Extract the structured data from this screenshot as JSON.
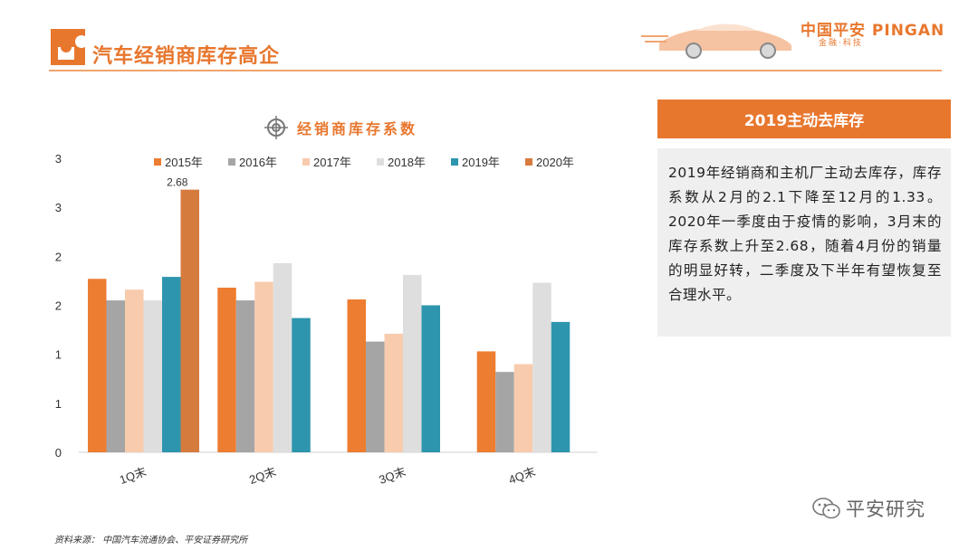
{
  "header": {
    "title": "汽车经销商库存高企",
    "brand_name": "中国平安 PINGAN",
    "brand_sub": "金融·科技"
  },
  "chart_title": "经销商库存系数",
  "chart_data": {
    "type": "bar",
    "categories": [
      "1Q末",
      "2Q末",
      "3Q末",
      "4Q末"
    ],
    "series": [
      {
        "name": "2015年",
        "color": "#ED7D31",
        "values": [
          1.77,
          1.68,
          1.56,
          1.03
        ]
      },
      {
        "name": "2016年",
        "color": "#A5A5A5",
        "values": [
          1.55,
          1.55,
          1.13,
          0.82
        ]
      },
      {
        "name": "2017年",
        "color": "#F8CBAD",
        "values": [
          1.66,
          1.74,
          1.21,
          0.9
        ]
      },
      {
        "name": "2018年",
        "color": "#DEDEDE",
        "values": [
          1.55,
          1.93,
          1.81,
          1.73
        ]
      },
      {
        "name": "2019年",
        "color": "#2E95AE",
        "values": [
          1.79,
          1.37,
          1.5,
          1.33
        ]
      },
      {
        "name": "2020年",
        "color": "#D67B3E",
        "values": [
          2.68,
          null,
          null,
          null
        ]
      }
    ],
    "yticks": [
      "0",
      "1",
      "1",
      "2",
      "2",
      "3",
      "3"
    ],
    "ylim": [
      0,
      3
    ],
    "annotations": [
      {
        "series": "2020年",
        "category": "1Q末",
        "text": "2.68"
      }
    ],
    "legend_position": "top",
    "grid": false
  },
  "side": {
    "header": "2019主动去库存",
    "text": "2019年经销商和主机厂主动去库存，库存系数从2月的2.1下降至12月的1.33。2020年一季度由于疫情的影响，3月末的库存系数上升至2.68，随着4月份的销量的明显好转，二季度及下半年有望恢复至合理水平。"
  },
  "watermark": "平安研究",
  "source": "资料来源：  中国汽车流通协会、平安证券研究所",
  "colors": {
    "accent": "#E8772E",
    "panel_bg": "#EFEFEF"
  }
}
